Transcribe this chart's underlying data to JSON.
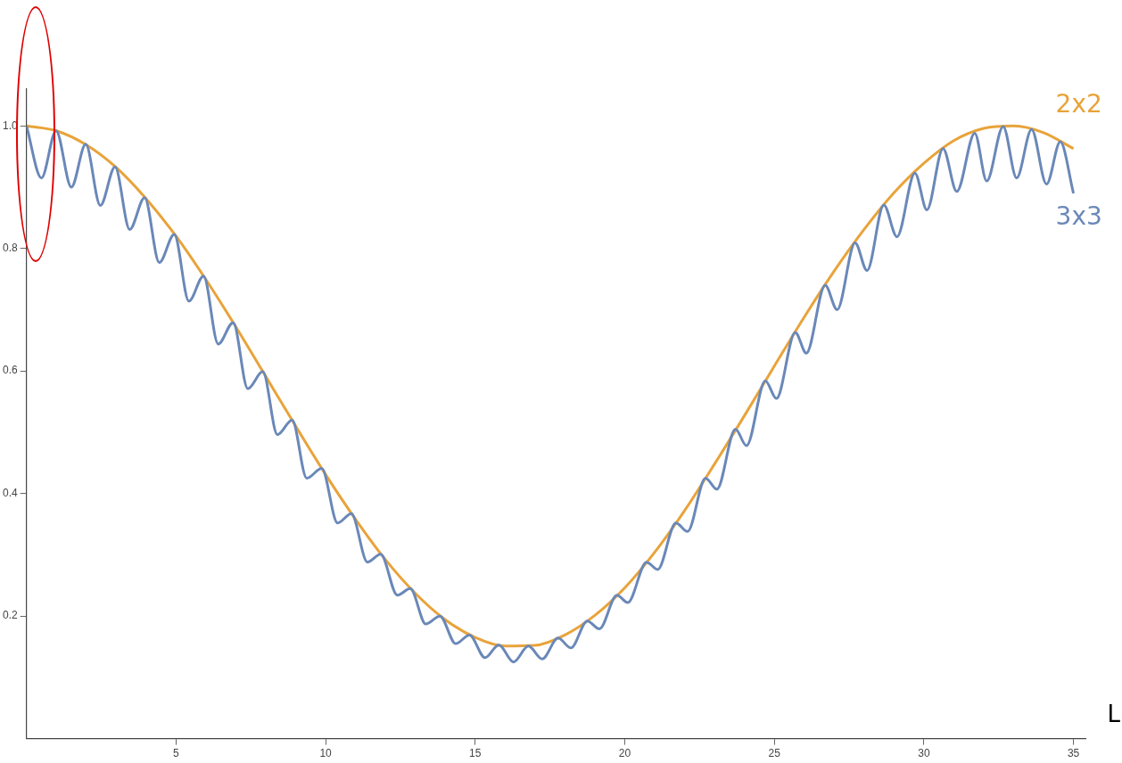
{
  "chart_data": {
    "type": "line",
    "xlabel": "L",
    "xlim": [
      0,
      35.4
    ],
    "xticks": [
      5,
      10,
      15,
      20,
      25,
      30,
      35
    ],
    "ylim": [
      0,
      1.06
    ],
    "yticks": [
      0.2,
      0.4,
      0.6,
      0.8,
      {
        "value": 1,
        "label": "1.0"
      }
    ],
    "grid": false,
    "legend": false,
    "marker": "none",
    "line_style": "solid",
    "series": [
      {
        "name": "3x3",
        "color": "#6a88b8",
        "x": [
          0,
          0.5,
          0.99,
          1.5,
          1.98,
          2.47,
          2.96,
          3.45,
          3.95,
          4.44,
          4.94,
          5.43,
          5.92,
          6.41,
          6.91,
          7.4,
          7.9,
          8.39,
          8.88,
          9.37,
          9.87,
          10.4,
          10.86,
          11.4,
          11.84,
          12.4,
          12.83,
          13.35,
          13.82,
          14.35,
          14.81,
          15.33,
          15.79,
          16.28,
          16.78,
          17.24,
          17.77,
          18.2,
          18.75,
          19.15,
          19.74,
          20.1,
          20.73,
          21.1,
          21.71,
          22.1,
          22.7,
          23.08,
          23.7,
          24.07,
          24.7,
          25.07,
          25.7,
          26.07,
          26.7,
          27.1,
          27.7,
          28.1,
          28.66,
          29.1,
          29.7,
          30.1,
          30.64,
          31.1,
          31.7,
          32.1,
          32.65,
          33.1,
          33.6,
          34.1,
          34.56,
          35.0
        ],
        "values": [
          1.0,
          0.915,
          0.992,
          0.9,
          0.97,
          0.87,
          0.933,
          0.831,
          0.883,
          0.777,
          0.823,
          0.714,
          0.755,
          0.644,
          0.679,
          0.571,
          0.599,
          0.496,
          0.52,
          0.425,
          0.441,
          0.352,
          0.367,
          0.288,
          0.301,
          0.234,
          0.245,
          0.187,
          0.2,
          0.155,
          0.169,
          0.132,
          0.153,
          0.125,
          0.151,
          0.13,
          0.164,
          0.148,
          0.192,
          0.179,
          0.234,
          0.222,
          0.288,
          0.276,
          0.352,
          0.338,
          0.425,
          0.407,
          0.505,
          0.478,
          0.584,
          0.555,
          0.663,
          0.629,
          0.74,
          0.7,
          0.809,
          0.764,
          0.871,
          0.819,
          0.923,
          0.863,
          0.963,
          0.893,
          0.988,
          0.91,
          0.999,
          0.915,
          0.994,
          0.905,
          0.974,
          0.89
        ]
      },
      {
        "name": "2x2",
        "color": "#e8a33a",
        "x": [
          0,
          1,
          2,
          3,
          4,
          5,
          6,
          7,
          8,
          9,
          10,
          11,
          12,
          13,
          14,
          15,
          16,
          17,
          18,
          19,
          20,
          21,
          22,
          23,
          24,
          25,
          26,
          27,
          28,
          29,
          30,
          31,
          32,
          33,
          34,
          35
        ],
        "values": [
          1.0,
          0.992,
          0.969,
          0.932,
          0.881,
          0.82,
          0.749,
          0.672,
          0.591,
          0.51,
          0.431,
          0.358,
          0.292,
          0.237,
          0.194,
          0.165,
          0.151,
          0.152,
          0.169,
          0.201,
          0.246,
          0.304,
          0.372,
          0.448,
          0.527,
          0.608,
          0.688,
          0.763,
          0.831,
          0.891,
          0.939,
          0.976,
          0.996,
          1.0,
          0.989,
          0.963
        ]
      }
    ]
  }
}
